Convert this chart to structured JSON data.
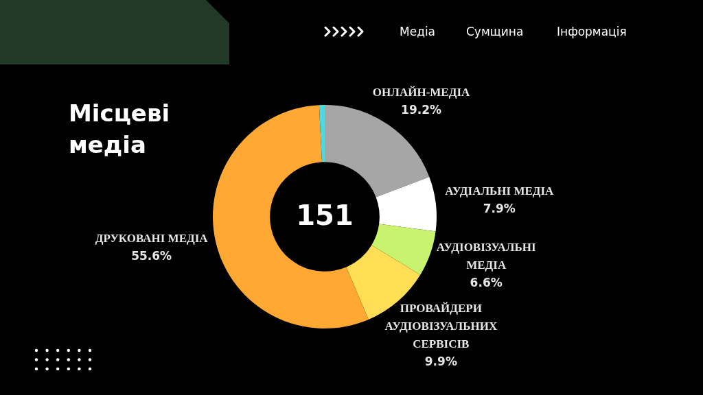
{
  "chart_data": {
    "type": "donut",
    "title": "Місцеві медіа",
    "categories": [
      "ОНЛАЙН-МЕДІА",
      "АУДІАЛЬНІ МЕДІА",
      "АУДІОВІЗУАЛЬНІ МЕДІА",
      "ПРОВАЙДЕРИ АУДІОВІЗУАЛЬНИХ СЕРВІСІВ",
      "ДРУКОВАНІ МЕДІА",
      null
    ],
    "values": [
      19.2,
      7.9,
      6.6,
      9.9,
      55.6,
      0.8
    ],
    "colors": [
      "#a6a6a6",
      "#ffffff",
      "#c8f36e",
      "#ffdd55",
      "#ffa833",
      "#4fd8e0"
    ],
    "value_labels": [
      "19.2%",
      "7.9%",
      "6.6%",
      "9.9%",
      "55.6%",
      null
    ],
    "legend": false,
    "annotations": [
      "151",
      "Медіа",
      "Сумщина",
      "Інформація"
    ]
  }
}
